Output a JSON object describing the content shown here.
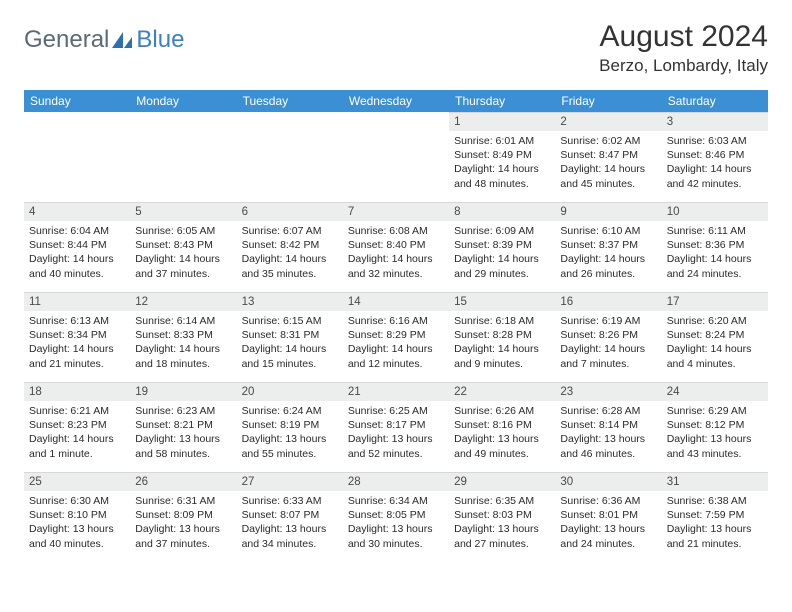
{
  "logo": {
    "part1": "General",
    "part2": "Blue"
  },
  "title": "August 2024",
  "location": "Berzo, Lombardy, Italy",
  "header_bg": "#3b8fd4",
  "header_fg": "#ffffff",
  "daynum_bg": "#eceded",
  "weekdays": [
    "Sunday",
    "Monday",
    "Tuesday",
    "Wednesday",
    "Thursday",
    "Friday",
    "Saturday"
  ],
  "weeks": [
    [
      null,
      null,
      null,
      null,
      {
        "n": "1",
        "sr": "6:01 AM",
        "ss": "8:49 PM",
        "dl": "14 hours and 48 minutes."
      },
      {
        "n": "2",
        "sr": "6:02 AM",
        "ss": "8:47 PM",
        "dl": "14 hours and 45 minutes."
      },
      {
        "n": "3",
        "sr": "6:03 AM",
        "ss": "8:46 PM",
        "dl": "14 hours and 42 minutes."
      }
    ],
    [
      {
        "n": "4",
        "sr": "6:04 AM",
        "ss": "8:44 PM",
        "dl": "14 hours and 40 minutes."
      },
      {
        "n": "5",
        "sr": "6:05 AM",
        "ss": "8:43 PM",
        "dl": "14 hours and 37 minutes."
      },
      {
        "n": "6",
        "sr": "6:07 AM",
        "ss": "8:42 PM",
        "dl": "14 hours and 35 minutes."
      },
      {
        "n": "7",
        "sr": "6:08 AM",
        "ss": "8:40 PM",
        "dl": "14 hours and 32 minutes."
      },
      {
        "n": "8",
        "sr": "6:09 AM",
        "ss": "8:39 PM",
        "dl": "14 hours and 29 minutes."
      },
      {
        "n": "9",
        "sr": "6:10 AM",
        "ss": "8:37 PM",
        "dl": "14 hours and 26 minutes."
      },
      {
        "n": "10",
        "sr": "6:11 AM",
        "ss": "8:36 PM",
        "dl": "14 hours and 24 minutes."
      }
    ],
    [
      {
        "n": "11",
        "sr": "6:13 AM",
        "ss": "8:34 PM",
        "dl": "14 hours and 21 minutes."
      },
      {
        "n": "12",
        "sr": "6:14 AM",
        "ss": "8:33 PM",
        "dl": "14 hours and 18 minutes."
      },
      {
        "n": "13",
        "sr": "6:15 AM",
        "ss": "8:31 PM",
        "dl": "14 hours and 15 minutes."
      },
      {
        "n": "14",
        "sr": "6:16 AM",
        "ss": "8:29 PM",
        "dl": "14 hours and 12 minutes."
      },
      {
        "n": "15",
        "sr": "6:18 AM",
        "ss": "8:28 PM",
        "dl": "14 hours and 9 minutes."
      },
      {
        "n": "16",
        "sr": "6:19 AM",
        "ss": "8:26 PM",
        "dl": "14 hours and 7 minutes."
      },
      {
        "n": "17",
        "sr": "6:20 AM",
        "ss": "8:24 PM",
        "dl": "14 hours and 4 minutes."
      }
    ],
    [
      {
        "n": "18",
        "sr": "6:21 AM",
        "ss": "8:23 PM",
        "dl": "14 hours and 1 minute."
      },
      {
        "n": "19",
        "sr": "6:23 AM",
        "ss": "8:21 PM",
        "dl": "13 hours and 58 minutes."
      },
      {
        "n": "20",
        "sr": "6:24 AM",
        "ss": "8:19 PM",
        "dl": "13 hours and 55 minutes."
      },
      {
        "n": "21",
        "sr": "6:25 AM",
        "ss": "8:17 PM",
        "dl": "13 hours and 52 minutes."
      },
      {
        "n": "22",
        "sr": "6:26 AM",
        "ss": "8:16 PM",
        "dl": "13 hours and 49 minutes."
      },
      {
        "n": "23",
        "sr": "6:28 AM",
        "ss": "8:14 PM",
        "dl": "13 hours and 46 minutes."
      },
      {
        "n": "24",
        "sr": "6:29 AM",
        "ss": "8:12 PM",
        "dl": "13 hours and 43 minutes."
      }
    ],
    [
      {
        "n": "25",
        "sr": "6:30 AM",
        "ss": "8:10 PM",
        "dl": "13 hours and 40 minutes."
      },
      {
        "n": "26",
        "sr": "6:31 AM",
        "ss": "8:09 PM",
        "dl": "13 hours and 37 minutes."
      },
      {
        "n": "27",
        "sr": "6:33 AM",
        "ss": "8:07 PM",
        "dl": "13 hours and 34 minutes."
      },
      {
        "n": "28",
        "sr": "6:34 AM",
        "ss": "8:05 PM",
        "dl": "13 hours and 30 minutes."
      },
      {
        "n": "29",
        "sr": "6:35 AM",
        "ss": "8:03 PM",
        "dl": "13 hours and 27 minutes."
      },
      {
        "n": "30",
        "sr": "6:36 AM",
        "ss": "8:01 PM",
        "dl": "13 hours and 24 minutes."
      },
      {
        "n": "31",
        "sr": "6:38 AM",
        "ss": "7:59 PM",
        "dl": "13 hours and 21 minutes."
      }
    ]
  ]
}
